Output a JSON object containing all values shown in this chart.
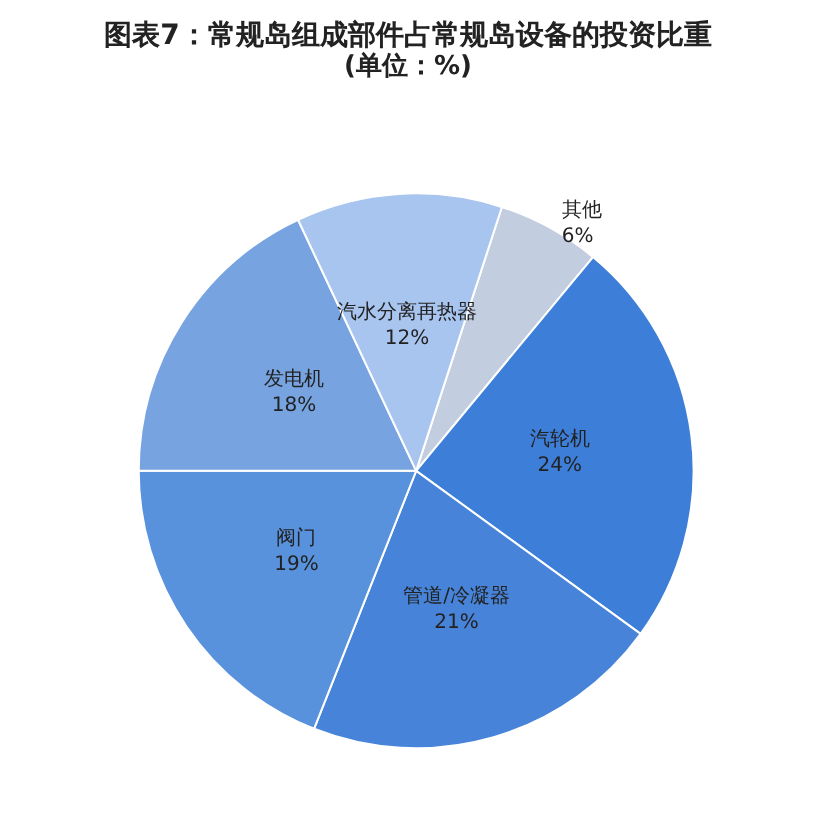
{
  "chart_data": {
    "type": "pie",
    "title": "图表7：常规岛组成部件占常规岛设备的投资比重",
    "subtitle": "(单位：%)",
    "categories": [
      "其他",
      "汽轮机",
      "管道/冷凝器",
      "阀门",
      "发电机",
      "汽水分离再热器"
    ],
    "values": [
      6,
      24,
      21,
      19,
      18,
      12
    ],
    "value_labels": [
      "6%",
      "24%",
      "21%",
      "19%",
      "18%",
      "12%"
    ],
    "colors": [
      "#c3cde0",
      "#3d7ed8",
      "#4784d9",
      "#5891dc",
      "#77a4e1",
      "#a8c5ef"
    ],
    "legend": false
  }
}
